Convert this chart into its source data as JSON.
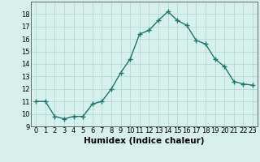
{
  "x": [
    0,
    1,
    2,
    3,
    4,
    5,
    6,
    7,
    8,
    9,
    10,
    11,
    12,
    13,
    14,
    15,
    16,
    17,
    18,
    19,
    20,
    21,
    22,
    23
  ],
  "y": [
    11.0,
    11.0,
    9.8,
    9.6,
    9.8,
    9.8,
    10.8,
    11.0,
    12.0,
    13.3,
    14.4,
    16.4,
    16.7,
    17.5,
    18.2,
    17.5,
    17.1,
    15.9,
    15.6,
    14.4,
    13.8,
    12.6,
    12.4,
    12.3
  ],
  "line_color": "#1a7a6e",
  "marker": "+",
  "markersize": 4,
  "linewidth": 1.0,
  "background_color": "#d6f0ec",
  "grid_color": "#b0d4cf",
  "xlabel": "Humidex (Indice chaleur)",
  "ylim": [
    9,
    19
  ],
  "xlim": [
    -0.5,
    23.5
  ],
  "yticks": [
    9,
    10,
    11,
    12,
    13,
    14,
    15,
    16,
    17,
    18
  ],
  "xticks": [
    0,
    1,
    2,
    3,
    4,
    5,
    6,
    7,
    8,
    9,
    10,
    11,
    12,
    13,
    14,
    15,
    16,
    17,
    18,
    19,
    20,
    21,
    22,
    23
  ],
  "tick_fontsize": 6,
  "xlabel_fontsize": 7.5
}
